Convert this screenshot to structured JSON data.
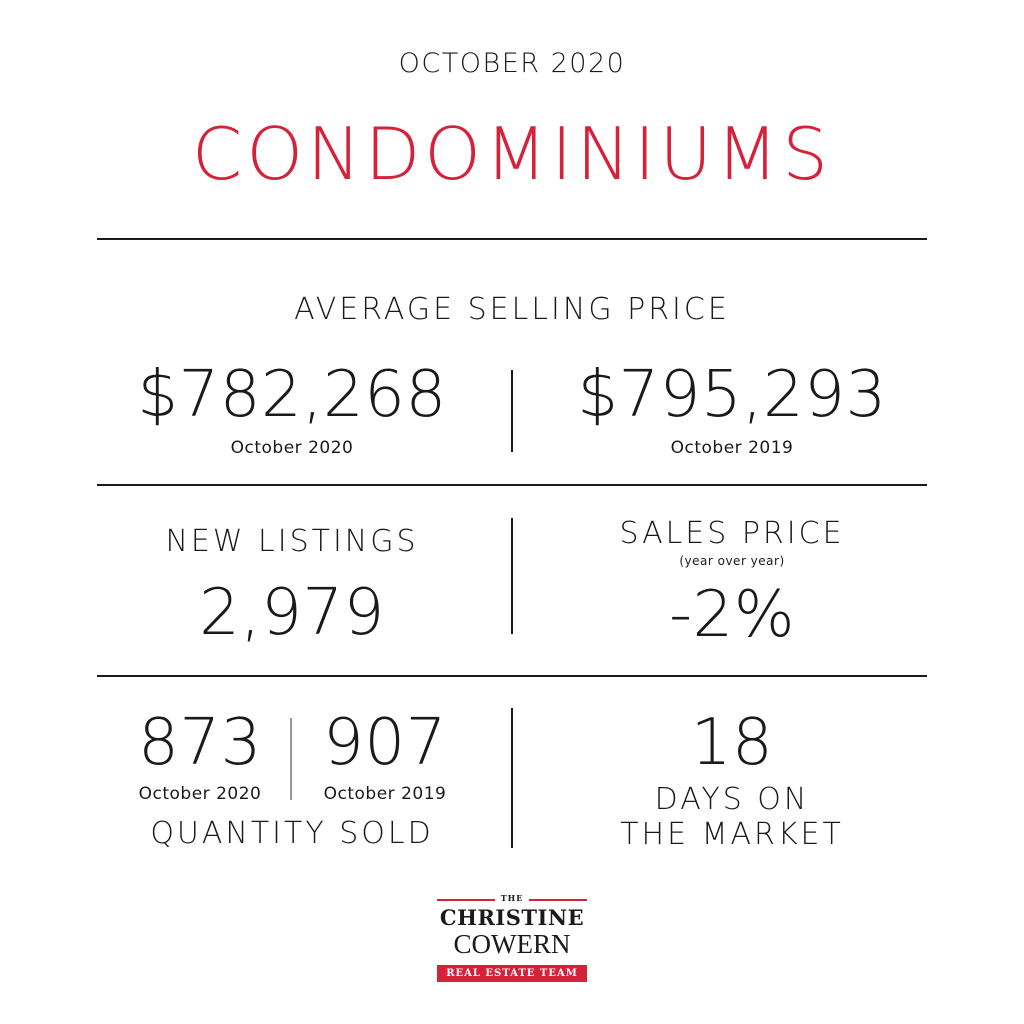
{
  "header": {
    "month": "OCTOBER 2020",
    "title": "CONDOMINIUMS"
  },
  "average_selling_price": {
    "label": "AVERAGE SELLING PRICE",
    "current_value": "$782,268",
    "current_period": "October 2020",
    "previous_value": "$795,293",
    "previous_period": "October 2019"
  },
  "new_listings": {
    "label": "NEW LISTINGS",
    "value": "2,979"
  },
  "sales_price": {
    "label": "SALES PRICE",
    "sublabel": "(year over year)",
    "value": "-2%"
  },
  "quantity_sold": {
    "current_value": "873",
    "current_period": "October 2020",
    "previous_value": "907",
    "previous_period": "October 2019",
    "label": "QUANTITY SOLD"
  },
  "days_on_market": {
    "value": "18",
    "label_line1": "DAYS ON",
    "label_line2": "THE MARKET"
  },
  "logo": {
    "the": "THE",
    "name1": "CHRISTINE",
    "name2": "COWERN",
    "tag": "REAL ESTATE TEAM"
  },
  "colors": {
    "accent": "#d6213a",
    "text": "#1a1a1a"
  }
}
